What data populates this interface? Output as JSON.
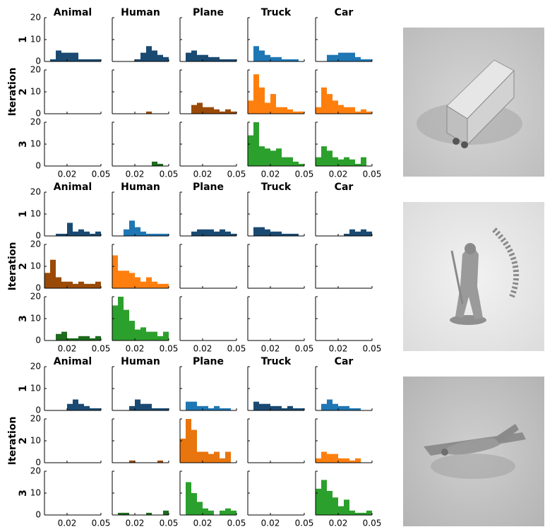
{
  "chart_data": [
    {
      "type": "histogram",
      "ylabel": "Iteration",
      "columns": [
        "Animal",
        "Human",
        "Plane",
        "Truck",
        "Car"
      ],
      "rows": [
        "1",
        "2",
        "3"
      ],
      "bins": [
        0,
        0.005,
        0.01,
        0.015,
        0.02,
        0.025,
        0.03,
        0.035,
        0.04,
        0.045,
        0.05
      ],
      "xlim": [
        0,
        0.05
      ],
      "xticks": [
        0.02,
        0.05
      ],
      "ylim": [
        0,
        20
      ],
      "yticks": [
        0,
        10,
        20
      ],
      "panels": [
        [
          {
            "color": "#1a4a72",
            "values": [
              0,
              1,
              5,
              4,
              4,
              4,
              1,
              1,
              1,
              1
            ]
          },
          {
            "color": "#1a4a72",
            "values": [
              0,
              0,
              0,
              0,
              1,
              4,
              7,
              5,
              3,
              2
            ]
          },
          {
            "color": "#1a4a72",
            "values": [
              0,
              4,
              5,
              3,
              3,
              2,
              2,
              1,
              1,
              1
            ]
          },
          {
            "color": "#1f77b4",
            "values": [
              0,
              7,
              5,
              3,
              2,
              2,
              1,
              1,
              1,
              0
            ]
          },
          {
            "color": "#1f77b4",
            "values": [
              0,
              0,
              3,
              3,
              4,
              4,
              4,
              2,
              1,
              1
            ]
          }
        ],
        [
          {
            "values": [
              0,
              0,
              0,
              0,
              0,
              0,
              0,
              0,
              0,
              0
            ]
          },
          {
            "color": "#9a4a06",
            "values": [
              0,
              0,
              0,
              0,
              0,
              0,
              1,
              0,
              0,
              0
            ]
          },
          {
            "color": "#9a4a06",
            "values": [
              0,
              0,
              4,
              5,
              3,
              3,
              2,
              1,
              2,
              1
            ]
          },
          {
            "color": "#ff7f0e",
            "values": [
              6,
              18,
              12,
              5,
              9,
              3,
              3,
              2,
              1,
              1
            ]
          },
          {
            "color": "#ff7f0e",
            "values": [
              3,
              12,
              9,
              6,
              4,
              3,
              3,
              1,
              2,
              1
            ]
          }
        ],
        [
          {
            "values": [
              0,
              0,
              0,
              0,
              0,
              0,
              0,
              0,
              0,
              0
            ]
          },
          {
            "color": "#1d6b1d",
            "values": [
              0,
              0,
              0,
              0,
              0,
              0,
              0,
              2,
              1,
              0
            ]
          },
          {
            "values": [
              0,
              0,
              0,
              0,
              0,
              0,
              0,
              0,
              0,
              0
            ]
          },
          {
            "color": "#2ca02c",
            "values": [
              14,
              20,
              9,
              8,
              7,
              8,
              4,
              4,
              2,
              1
            ]
          },
          {
            "color": "#2ca02c",
            "values": [
              4,
              9,
              7,
              4,
              3,
              4,
              3,
              1,
              4,
              0
            ]
          }
        ]
      ]
    },
    {
      "type": "histogram",
      "ylabel": "Iteration",
      "columns": [
        "Animal",
        "Human",
        "Plane",
        "Truck",
        "Car"
      ],
      "rows": [
        "1",
        "2",
        "3"
      ],
      "bins": [
        0,
        0.005,
        0.01,
        0.015,
        0.02,
        0.025,
        0.03,
        0.035,
        0.04,
        0.045,
        0.05
      ],
      "xlim": [
        0,
        0.05
      ],
      "xticks": [
        0.02,
        0.05
      ],
      "ylim": [
        0,
        20
      ],
      "yticks": [
        0,
        10,
        20
      ],
      "panels": [
        [
          {
            "color": "#1a4a72",
            "values": [
              0,
              0,
              1,
              1,
              6,
              2,
              3,
              2,
              1,
              2
            ]
          },
          {
            "color": "#1f77b4",
            "values": [
              0,
              0,
              3,
              7,
              4,
              2,
              1,
              1,
              1,
              1
            ]
          },
          {
            "color": "#1a4a72",
            "values": [
              0,
              0,
              2,
              3,
              3,
              3,
              2,
              3,
              2,
              1
            ]
          },
          {
            "color": "#1a4a72",
            "values": [
              0,
              4,
              4,
              3,
              2,
              2,
              1,
              1,
              1,
              0
            ]
          },
          {
            "color": "#1a4a72",
            "values": [
              0,
              0,
              0,
              0,
              0,
              1,
              3,
              2,
              3,
              2
            ]
          }
        ],
        [
          {
            "color": "#9a4a06",
            "values": [
              7,
              13,
              5,
              3,
              3,
              2,
              3,
              2,
              2,
              3
            ]
          },
          {
            "color": "#ff7f0e",
            "values": [
              15,
              8,
              8,
              7,
              5,
              3,
              5,
              3,
              2,
              2
            ]
          },
          {
            "values": [
              0,
              0,
              0,
              0,
              0,
              0,
              0,
              0,
              0,
              0
            ]
          },
          {
            "values": [
              0,
              0,
              0,
              0,
              0,
              0,
              0,
              0,
              0,
              0
            ]
          },
          {
            "values": [
              0,
              0,
              0,
              0,
              0,
              0,
              0,
              0,
              0,
              0
            ]
          }
        ],
        [
          {
            "color": "#1d6b1d",
            "values": [
              0,
              0,
              3,
              4,
              1,
              1,
              2,
              2,
              1,
              2
            ]
          },
          {
            "color": "#2ca02c",
            "values": [
              16,
              20,
              14,
              9,
              5,
              6,
              4,
              4,
              2,
              4
            ]
          },
          {
            "values": [
              0,
              0,
              0,
              0,
              0,
              0,
              0,
              0,
              0,
              0
            ]
          },
          {
            "values": [
              0,
              0,
              0,
              0,
              0,
              0,
              0,
              0,
              0,
              0
            ]
          },
          {
            "values": [
              0,
              0,
              0,
              0,
              0,
              0,
              0,
              0,
              0,
              0
            ]
          }
        ]
      ]
    },
    {
      "type": "histogram",
      "ylabel": "Iteration",
      "columns": [
        "Animal",
        "Human",
        "Plane",
        "Truck",
        "Car"
      ],
      "rows": [
        "1",
        "2",
        "3"
      ],
      "bins": [
        0,
        0.005,
        0.01,
        0.015,
        0.02,
        0.025,
        0.03,
        0.035,
        0.04,
        0.045,
        0.05
      ],
      "xlim": [
        0,
        0.05
      ],
      "xticks": [
        0.02,
        0.05
      ],
      "ylim": [
        0,
        20
      ],
      "yticks": [
        0,
        10,
        20
      ],
      "panels": [
        [
          {
            "color": "#1a4a72",
            "values": [
              0,
              0,
              0,
              0,
              3,
              5,
              3,
              2,
              1,
              1
            ]
          },
          {
            "color": "#1a4a72",
            "values": [
              0,
              0,
              0,
              2,
              5,
              3,
              3,
              1,
              1,
              1
            ]
          },
          {
            "color": "#1f77b4",
            "values": [
              0,
              4,
              4,
              2,
              2,
              1,
              2,
              1,
              1,
              0
            ]
          },
          {
            "color": "#1a4a72",
            "values": [
              0,
              4,
              3,
              3,
              2,
              2,
              1,
              2,
              1,
              1
            ]
          },
          {
            "color": "#1f77b4",
            "values": [
              0,
              3,
              5,
              3,
              2,
              2,
              1,
              1,
              0,
              0
            ]
          }
        ],
        [
          {
            "values": [
              0,
              0,
              0,
              0,
              0,
              0,
              0,
              0,
              0,
              0
            ]
          },
          {
            "color": "#9a4a06",
            "values": [
              0,
              0,
              0,
              1,
              0,
              0,
              0,
              0,
              1,
              0
            ]
          },
          {
            "color": "#e8750e",
            "values": [
              11,
              20,
              15,
              5,
              5,
              4,
              5,
              2,
              5,
              0
            ]
          },
          {
            "values": [
              0,
              0,
              0,
              0,
              0,
              0,
              0,
              0,
              0,
              0
            ]
          },
          {
            "color": "#ff7f0e",
            "values": [
              2,
              5,
              4,
              4,
              2,
              2,
              1,
              2,
              0,
              0
            ]
          }
        ],
        [
          {
            "values": [
              0,
              0,
              0,
              0,
              0,
              0,
              0,
              0,
              0,
              0
            ]
          },
          {
            "color": "#1d6b1d",
            "values": [
              0,
              1,
              1,
              0,
              0,
              0,
              1,
              0,
              0,
              2
            ]
          },
          {
            "color": "#2ca02c",
            "values": [
              0,
              15,
              10,
              6,
              3,
              2,
              0,
              2,
              3,
              2
            ]
          },
          {
            "values": [
              0,
              0,
              0,
              0,
              0,
              0,
              0,
              0,
              0,
              0
            ]
          },
          {
            "color": "#2ca02c",
            "values": [
              12,
              16,
              11,
              8,
              4,
              7,
              2,
              1,
              1,
              2
            ]
          }
        ]
      ]
    }
  ]
}
